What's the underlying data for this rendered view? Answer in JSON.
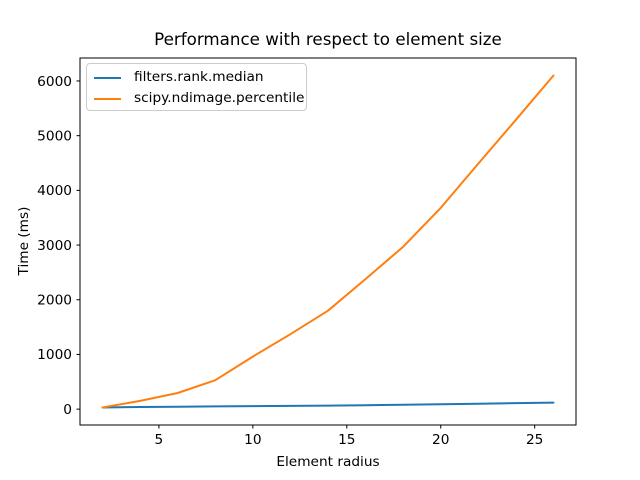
{
  "figure": {
    "background": "#ffffff"
  },
  "chart_data": {
    "type": "line",
    "title": "Performance with respect to element size",
    "xlabel": "Element radius",
    "ylabel": "Time (ms)",
    "x": [
      2,
      4,
      6,
      8,
      10,
      12,
      14,
      16,
      18,
      20,
      22,
      24,
      26
    ],
    "series": [
      {
        "name": "filters.rank.median",
        "color": "#1f77b4",
        "values": [
          30,
          40,
          45,
          50,
          55,
          60,
          65,
          72,
          80,
          90,
          100,
          110,
          120
        ]
      },
      {
        "name": "scipy.ndimage.percentile",
        "color": "#ff7f0e",
        "values": [
          30,
          150,
          295,
          530,
          960,
          1370,
          1800,
          2380,
          2970,
          3680,
          4490,
          5290,
          6100
        ]
      }
    ],
    "xlim": [
      0.8,
      27.2
    ],
    "ylim": [
      -290,
      6420
    ],
    "xticks": [
      5,
      10,
      15,
      20,
      25
    ],
    "yticks": [
      0,
      1000,
      2000,
      3000,
      4000,
      5000,
      6000
    ],
    "grid": false,
    "legend_position": "upper left",
    "axis_color": "#000000"
  }
}
